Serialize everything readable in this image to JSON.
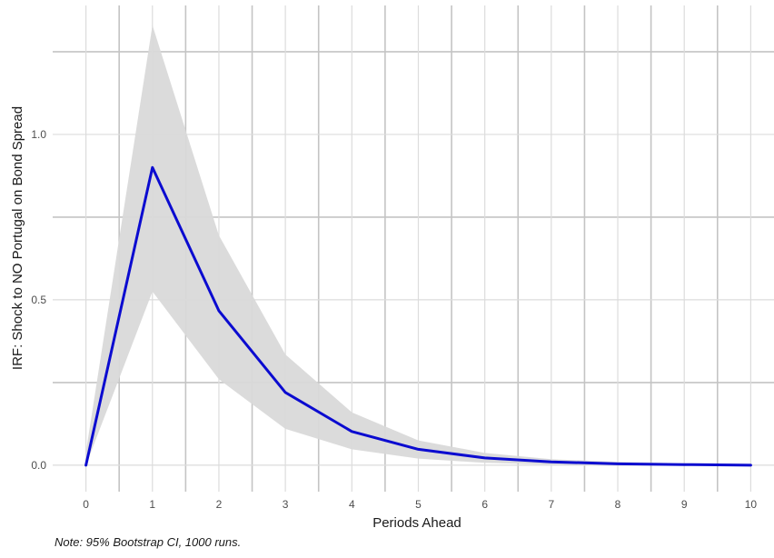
{
  "chart_data": {
    "type": "line",
    "title": "",
    "xlabel": "Periods Ahead",
    "ylabel": "IRF: Shock to NO Portugal on Bond Spread",
    "caption": "Note: 95% Bootstrap CI, 1000 runs.",
    "xlim": [
      -0.5,
      10.35
    ],
    "ylim": [
      -0.08,
      1.39
    ],
    "x_ticks": [
      0,
      1,
      2,
      3,
      4,
      5,
      6,
      7,
      8,
      9,
      10
    ],
    "y_ticks": [
      0.0,
      0.5,
      1.0
    ],
    "y_tick_labels": [
      "0.0",
      "0.5",
      "1.0"
    ],
    "grid": true,
    "series": [
      {
        "type": "line",
        "color": "#0b0bd0",
        "x": [
          0,
          1,
          2,
          3,
          4,
          5,
          6,
          7,
          8,
          9,
          10
        ],
        "values": [
          0.0,
          0.9,
          0.467,
          0.22,
          0.102,
          0.048,
          0.022,
          0.01,
          0.004,
          0.002,
          0.0
        ]
      },
      {
        "type": "ribbon",
        "color": "#d9d9d9",
        "x": [
          0,
          1,
          2,
          3,
          4,
          5,
          6,
          7,
          8,
          9,
          10
        ],
        "lower": [
          0.0,
          0.525,
          0.26,
          0.11,
          0.048,
          0.02,
          0.007,
          0.002,
          0.0,
          -0.001,
          -0.002
        ],
        "upper": [
          0.04,
          1.33,
          0.695,
          0.335,
          0.16,
          0.075,
          0.037,
          0.018,
          0.01,
          0.006,
          0.004
        ]
      }
    ]
  }
}
